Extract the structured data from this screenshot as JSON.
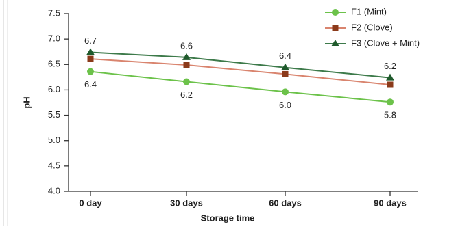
{
  "chart_data": {
    "type": "line",
    "x_label": "Storage time",
    "y_label": "pH",
    "categories": [
      "0 day",
      "30 days",
      "60 days",
      "90 days"
    ],
    "series": [
      {
        "name": "F1 (Mint)",
        "color": "#6cc24a",
        "marker": "circle",
        "values": [
          6.36,
          6.16,
          5.96,
          5.76
        ],
        "value_labels": [
          "6.4",
          "6.2",
          "6.0",
          "5.8"
        ]
      },
      {
        "name": "F2 (Clove)",
        "color": "#d9846e",
        "marker_color": "#8b3a1a",
        "marker": "square",
        "values": [
          6.61,
          6.49,
          6.31,
          6.1
        ]
      },
      {
        "name": "F3 (Clove + Mint)",
        "color": "#3d7a4a",
        "marker_color": "#1f5a2c",
        "marker": "triangle",
        "values": [
          6.74,
          6.64,
          6.44,
          6.24
        ],
        "value_labels": [
          "6.7",
          "6.6",
          "6.4",
          "6.2"
        ]
      }
    ],
    "ylim": [
      4,
      7.5
    ],
    "yticks": [
      {
        "value": 4,
        "label": "4.0"
      },
      4.5,
      {
        "value": 5,
        "label": "5.0"
      },
      5.5,
      {
        "value": 6,
        "label": "6.0"
      },
      6.5,
      {
        "value": 7,
        "label": "7.0"
      },
      7.5
    ],
    "legend": "top-right"
  }
}
